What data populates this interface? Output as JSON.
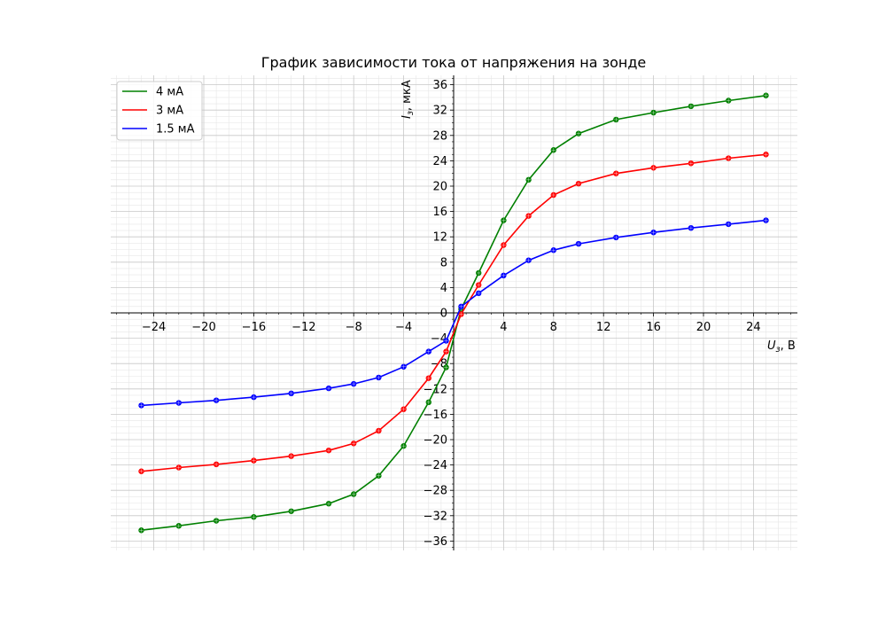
{
  "chart_data": {
    "type": "line",
    "title": "График зависимости тока от напряжения на зонде",
    "xlabel": {
      "symbol": "U",
      "sub": "з",
      "unit": ", В"
    },
    "ylabel": {
      "symbol": "I",
      "sub": "з",
      "unit": ", мкА"
    },
    "xlim": [
      -27.5,
      27.5
    ],
    "ylim": [
      -37.5,
      37.5
    ],
    "x_ticks": [
      -24,
      -20,
      -16,
      -12,
      -8,
      -4,
      0,
      4,
      8,
      12,
      16,
      20,
      24
    ],
    "y_ticks": [
      -36,
      -32,
      -28,
      -24,
      -20,
      -16,
      -12,
      -8,
      -4,
      0,
      4,
      8,
      12,
      16,
      20,
      24,
      28,
      32,
      36
    ],
    "x_tick_labels": [
      "−24",
      "−20",
      "−16",
      "−12",
      "−8",
      "−4",
      "4",
      "8",
      "12",
      "16",
      "20",
      "24"
    ],
    "y_tick_labels": [
      "−36",
      "−32",
      "−28",
      "−24",
      "−20",
      "−16",
      "−12",
      "−8",
      "−4",
      "0",
      "4",
      "8",
      "12",
      "16",
      "20",
      "24",
      "28",
      "32",
      "36"
    ],
    "grid": true,
    "minor_grid": true,
    "legend_position": "top-left",
    "series": [
      {
        "name": "4 мА",
        "color": "#008000",
        "points": [
          [
            -25,
            -34.3
          ],
          [
            -22,
            -33.6
          ],
          [
            -19,
            -32.8
          ],
          [
            -16,
            -32.2
          ],
          [
            -13,
            -31.3
          ],
          [
            -10,
            -30.1
          ],
          [
            -8,
            -28.6
          ],
          [
            -6,
            -25.7
          ],
          [
            -4,
            -21.0
          ],
          [
            -2,
            -14.1
          ],
          [
            -0.6,
            -8.6
          ],
          [
            0.6,
            0.6
          ],
          [
            2,
            6.3
          ],
          [
            4,
            14.6
          ],
          [
            6,
            21.0
          ],
          [
            8,
            25.7
          ],
          [
            10,
            28.3
          ],
          [
            13,
            30.5
          ],
          [
            16,
            31.6
          ],
          [
            19,
            32.6
          ],
          [
            22,
            33.5
          ],
          [
            25,
            34.3
          ]
        ]
      },
      {
        "name": "3 мА",
        "color": "#ff0000",
        "points": [
          [
            -25,
            -25.0
          ],
          [
            -22,
            -24.4
          ],
          [
            -19,
            -23.9
          ],
          [
            -16,
            -23.3
          ],
          [
            -13,
            -22.6
          ],
          [
            -10,
            -21.7
          ],
          [
            -8,
            -20.6
          ],
          [
            -6,
            -18.6
          ],
          [
            -4,
            -15.2
          ],
          [
            -2,
            -10.3
          ],
          [
            -0.6,
            -6.1
          ],
          [
            0.6,
            -0.2
          ],
          [
            2,
            4.4
          ],
          [
            4,
            10.7
          ],
          [
            6,
            15.3
          ],
          [
            8,
            18.6
          ],
          [
            10,
            20.4
          ],
          [
            13,
            22.0
          ],
          [
            16,
            22.9
          ],
          [
            19,
            23.6
          ],
          [
            22,
            24.4
          ],
          [
            25,
            25.0
          ]
        ]
      },
      {
        "name": "1.5 мА",
        "color": "#0000ff",
        "points": [
          [
            -25,
            -14.6
          ],
          [
            -22,
            -14.2
          ],
          [
            -19,
            -13.8
          ],
          [
            -16,
            -13.3
          ],
          [
            -13,
            -12.7
          ],
          [
            -10,
            -11.9
          ],
          [
            -8,
            -11.2
          ],
          [
            -6,
            -10.2
          ],
          [
            -4,
            -8.5
          ],
          [
            -2,
            -6.1
          ],
          [
            -0.6,
            -4.4
          ],
          [
            0.6,
            1.0
          ],
          [
            2,
            3.1
          ],
          [
            4,
            5.9
          ],
          [
            6,
            8.3
          ],
          [
            8,
            9.9
          ],
          [
            10,
            10.9
          ],
          [
            13,
            11.9
          ],
          [
            16,
            12.7
          ],
          [
            19,
            13.4
          ],
          [
            22,
            14.0
          ],
          [
            25,
            14.6
          ]
        ]
      }
    ]
  }
}
